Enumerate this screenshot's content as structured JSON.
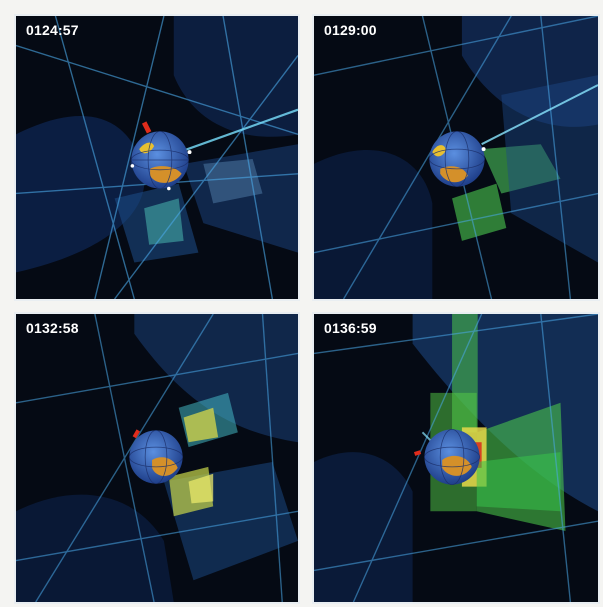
{
  "panels": [
    {
      "timestamp": "0124:57"
    },
    {
      "timestamp": "0129:00"
    },
    {
      "timestamp": "0132:58"
    },
    {
      "timestamp": "0136:59"
    }
  ],
  "colors": {
    "background": "#04070e",
    "frame": "#f4f4f2",
    "border": "#e9eef2",
    "earth_blue": "#2f67c8",
    "earth_land": "#d49a2a",
    "field_blue": "#3d7fd0",
    "field_cyan": "#4fc6e8",
    "field_green": "#4fd24a",
    "field_yellow": "#e8e04a",
    "field_red": "#d8331f"
  }
}
